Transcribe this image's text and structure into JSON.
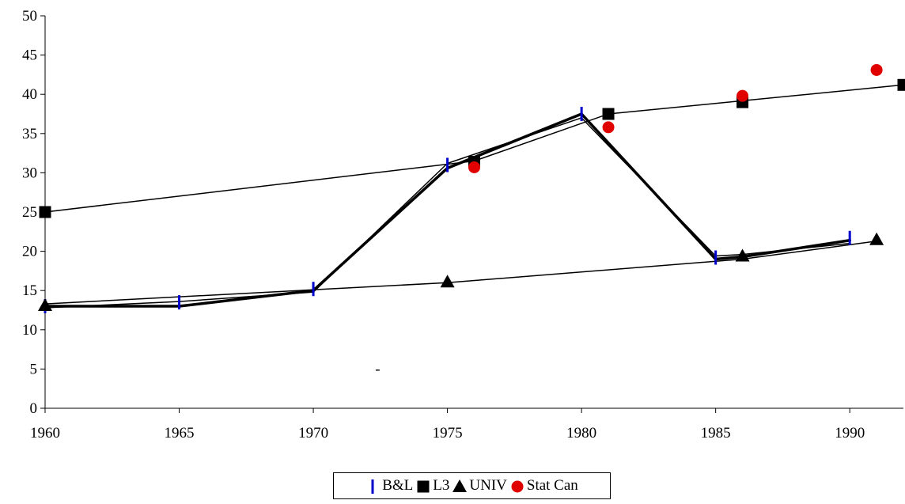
{
  "chart_data": {
    "type": "line",
    "title": "",
    "xlabel": "",
    "ylabel": "",
    "xlim": [
      1960,
      1992
    ],
    "ylim": [
      0,
      50
    ],
    "xticks": [
      1960,
      1965,
      1970,
      1975,
      1980,
      1985,
      1990
    ],
    "yticks": [
      0,
      5,
      10,
      15,
      20,
      25,
      30,
      35,
      40,
      45,
      50
    ],
    "grid": false,
    "legend_position": "bottom",
    "series": [
      {
        "name": "B&L",
        "marker": "dash",
        "color": "#0000cc",
        "points": [
          [
            1960,
            13
          ],
          [
            1965,
            13.5
          ],
          [
            1970,
            15.2
          ],
          [
            1975,
            31
          ],
          [
            1980,
            37.5
          ],
          [
            1985,
            19.2
          ],
          [
            1990,
            21.7
          ]
        ]
      },
      {
        "name": "L3",
        "marker": "square",
        "color": "#000000",
        "points": [
          [
            1960,
            25
          ],
          [
            1976,
            31.4
          ],
          [
            1981,
            37.5
          ],
          [
            1986,
            39
          ],
          [
            1992,
            41.2
          ]
        ]
      },
      {
        "name": "UNIV",
        "marker": "triangle",
        "color": "#000000",
        "points": [
          [
            1960,
            13.1
          ],
          [
            1975,
            16.1
          ],
          [
            1986,
            19.4
          ],
          [
            1991,
            21.5
          ]
        ]
      },
      {
        "name": "Stat Can",
        "marker": "circle",
        "color": "#e00000",
        "points": [
          [
            1976,
            30.7
          ],
          [
            1981,
            35.8
          ],
          [
            1986,
            39.8
          ],
          [
            1991,
            43.1
          ]
        ]
      }
    ],
    "lines": [
      {
        "style": "thick",
        "points": [
          [
            1960,
            13
          ],
          [
            1965,
            13
          ],
          [
            1970,
            15
          ],
          [
            1975,
            30.6
          ],
          [
            1980,
            37.5
          ],
          [
            1985,
            19
          ],
          [
            1986,
            19.3
          ],
          [
            1990,
            21.4
          ]
        ]
      },
      {
        "style": "thin",
        "points": [
          [
            1960,
            12.8
          ],
          [
            1965,
            13.6
          ],
          [
            1970,
            14.8
          ],
          [
            1975,
            31.2
          ],
          [
            1980,
            37
          ],
          [
            1985,
            19.4
          ],
          [
            1986,
            19.6
          ],
          [
            1990,
            21
          ]
        ]
      },
      {
        "style": "thin",
        "points": [
          [
            1960,
            25
          ],
          [
            1976,
            31.5
          ],
          [
            1981,
            37.5
          ],
          [
            1992,
            41.2
          ]
        ]
      },
      {
        "style": "thin",
        "points": [
          [
            1960,
            13.3
          ],
          [
            1975,
            16
          ],
          [
            1986,
            19
          ],
          [
            1991,
            21.3
          ]
        ]
      }
    ],
    "annotations": [
      {
        "text": "-",
        "x": 1972.4,
        "y": 4.4
      }
    ]
  }
}
